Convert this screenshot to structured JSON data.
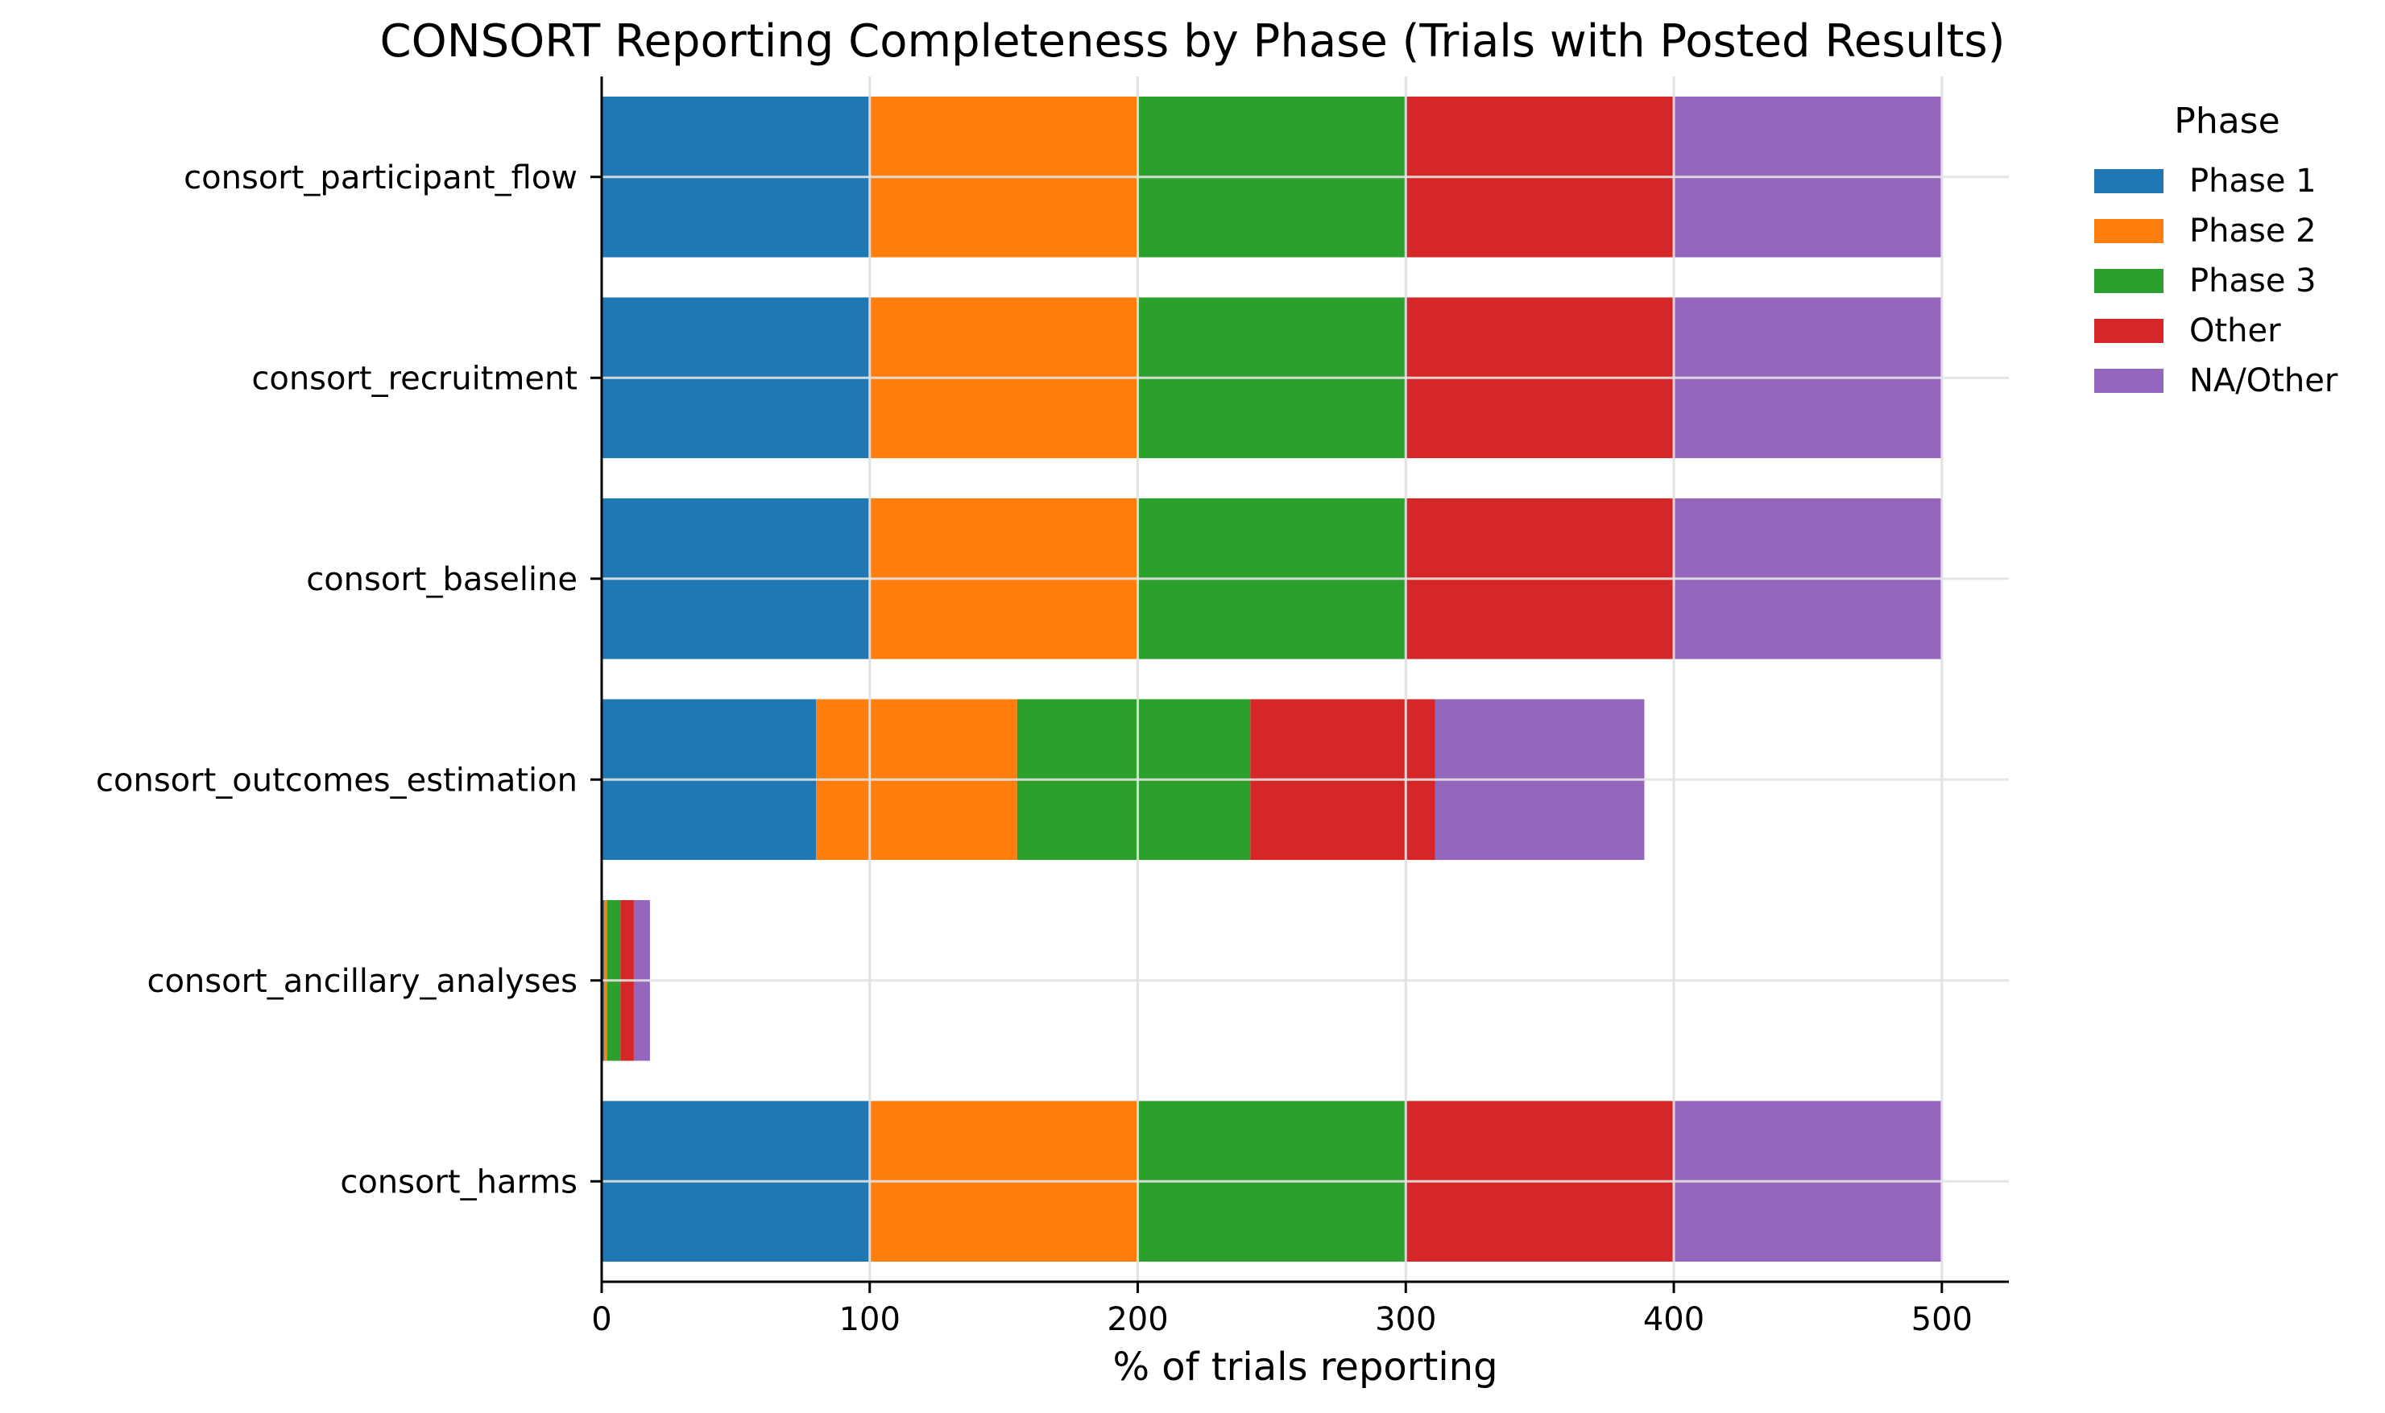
{
  "chart_data": {
    "type": "bar",
    "orientation": "horizontal",
    "stacked": true,
    "title": "CONSORT Reporting Completeness by Phase (Trials with Posted Results)",
    "xlabel": "% of trials reporting",
    "ylabel": "",
    "xlim": [
      0,
      525
    ],
    "xticks": [
      0,
      100,
      200,
      300,
      400,
      500
    ],
    "grid": true,
    "legend_title": "Phase",
    "legend_position": "right",
    "categories": [
      "consort_participant_flow",
      "consort_recruitment",
      "consort_baseline",
      "consort_outcomes_estimation",
      "consort_ancillary_analyses",
      "consort_harms"
    ],
    "series": [
      {
        "name": "Phase 1",
        "color": "#1f77b4",
        "values": [
          100,
          100,
          100,
          80,
          1,
          100
        ]
      },
      {
        "name": "Phase 2",
        "color": "#ff7f0e",
        "values": [
          100,
          100,
          100,
          75,
          1,
          100
        ]
      },
      {
        "name": "Phase 3",
        "color": "#2ca02c",
        "values": [
          100,
          100,
          100,
          87,
          5,
          100
        ]
      },
      {
        "name": "Other",
        "color": "#d62728",
        "values": [
          100,
          100,
          100,
          69,
          5,
          100
        ]
      },
      {
        "name": "NA/Other",
        "color": "#9467bd",
        "values": [
          100,
          100,
          100,
          78,
          6,
          100
        ]
      }
    ]
  }
}
